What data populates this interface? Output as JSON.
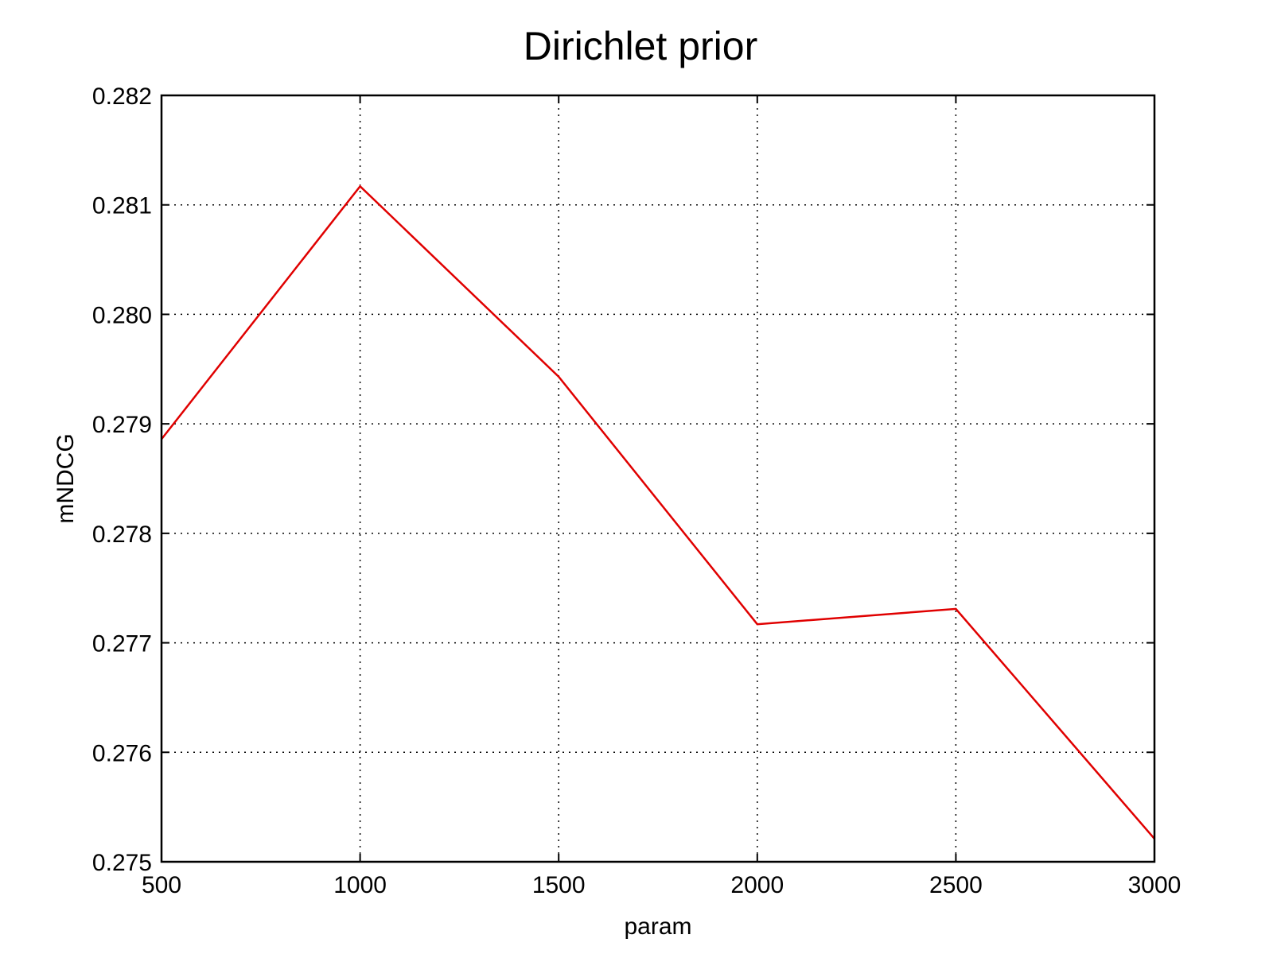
{
  "chart_data": {
    "type": "line",
    "title": "Dirichlet prior",
    "xlabel": "param",
    "ylabel": "mNDCG",
    "xlim": [
      500,
      3000
    ],
    "ylim": [
      0.275,
      0.282
    ],
    "xticks": [
      500,
      1000,
      1500,
      2000,
      2500,
      3000
    ],
    "xtick_labels": [
      "500",
      "1000",
      "1500",
      "2000",
      "2500",
      "3000"
    ],
    "yticks": [
      0.275,
      0.276,
      0.277,
      0.278,
      0.279,
      0.28,
      0.281,
      0.282
    ],
    "ytick_labels": [
      "0.275",
      "0.276",
      "0.277",
      "0.278",
      "0.279",
      "0.280",
      "0.281",
      "0.282"
    ],
    "grid": true,
    "series": [
      {
        "color": "#e00000",
        "x": [
          500,
          1000,
          1500,
          2000,
          2500,
          3000
        ],
        "y": [
          0.27886,
          0.28117,
          0.27943,
          0.27717,
          0.27731,
          0.27521
        ]
      }
    ]
  }
}
